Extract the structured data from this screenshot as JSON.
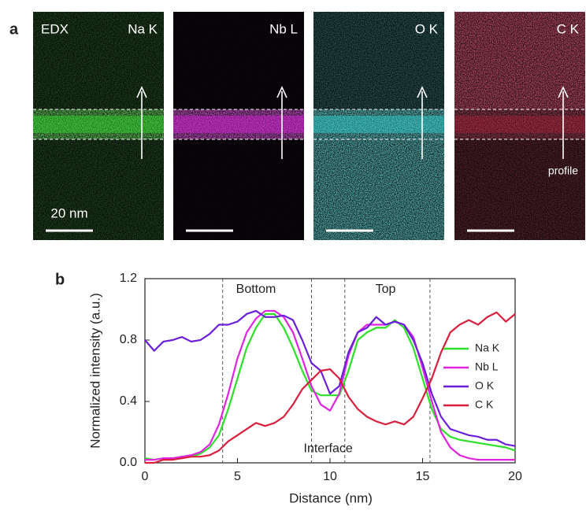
{
  "panel_a": {
    "label": "a",
    "edx": "EDX",
    "scale_bar": "20 nm",
    "profile": "profile",
    "maps": [
      {
        "label": "Na K",
        "color": "#2fe02a"
      },
      {
        "label": "Nb L",
        "color": "#e020e0"
      },
      {
        "label": "O K",
        "color": "#2ed8d8"
      },
      {
        "label": "C K",
        "color": "#e8203c"
      }
    ]
  },
  "chart_data": {
    "type": "line",
    "panel_label": "b",
    "x_label": "Distance (nm)",
    "y_label": "Normalized intensity (a.u.)",
    "x": [
      0,
      0.5,
      1,
      1.5,
      2,
      2.5,
      3,
      3.5,
      4,
      4.5,
      5,
      5.5,
      6,
      6.5,
      7,
      7.5,
      8,
      8.5,
      9,
      9.5,
      10,
      10.5,
      11,
      11.5,
      12,
      12.5,
      13,
      13.5,
      14,
      14.5,
      15,
      15.5,
      16,
      16.5,
      17,
      17.5,
      18,
      18.5,
      19,
      19.5,
      20
    ],
    "series": [
      {
        "name": "Na K",
        "color": "#2ee02a",
        "values": [
          0.03,
          0.02,
          0.03,
          0.03,
          0.04,
          0.04,
          0.06,
          0.1,
          0.18,
          0.35,
          0.55,
          0.75,
          0.88,
          0.97,
          0.97,
          0.88,
          0.75,
          0.6,
          0.47,
          0.44,
          0.44,
          0.44,
          0.6,
          0.8,
          0.85,
          0.88,
          0.88,
          0.93,
          0.88,
          0.75,
          0.55,
          0.35,
          0.22,
          0.17,
          0.15,
          0.14,
          0.13,
          0.12,
          0.11,
          0.1,
          0.08
        ]
      },
      {
        "name": "Nb L",
        "color": "#e024e0",
        "values": [
          0.02,
          0.02,
          0.03,
          0.03,
          0.04,
          0.05,
          0.07,
          0.12,
          0.25,
          0.45,
          0.68,
          0.85,
          0.94,
          0.99,
          0.99,
          0.95,
          0.85,
          0.68,
          0.5,
          0.38,
          0.34,
          0.45,
          0.7,
          0.85,
          0.9,
          0.9,
          0.9,
          0.92,
          0.9,
          0.82,
          0.62,
          0.4,
          0.2,
          0.1,
          0.05,
          0.03,
          0.02,
          0.02,
          0.02,
          0.02,
          0.02
        ]
      },
      {
        "name": "O K",
        "color": "#6a1fd8",
        "values": [
          0.8,
          0.73,
          0.79,
          0.8,
          0.82,
          0.79,
          0.8,
          0.84,
          0.9,
          0.9,
          0.92,
          0.97,
          0.99,
          0.95,
          0.95,
          0.96,
          0.93,
          0.8,
          0.65,
          0.6,
          0.45,
          0.5,
          0.72,
          0.85,
          0.88,
          0.95,
          0.9,
          0.92,
          0.9,
          0.8,
          0.65,
          0.45,
          0.3,
          0.22,
          0.2,
          0.18,
          0.17,
          0.15,
          0.15,
          0.12,
          0.11
        ]
      },
      {
        "name": "C K",
        "color": "#d8203c",
        "values": [
          0.0,
          0.0,
          0.02,
          0.02,
          0.03,
          0.04,
          0.04,
          0.05,
          0.08,
          0.14,
          0.18,
          0.22,
          0.26,
          0.24,
          0.26,
          0.3,
          0.38,
          0.48,
          0.54,
          0.6,
          0.61,
          0.55,
          0.43,
          0.35,
          0.3,
          0.27,
          0.25,
          0.27,
          0.25,
          0.3,
          0.42,
          0.55,
          0.72,
          0.85,
          0.9,
          0.93,
          0.9,
          0.95,
          0.98,
          0.92,
          0.97
        ]
      }
    ],
    "xlim": [
      0,
      20
    ],
    "xticks": [
      0,
      5,
      10,
      15,
      20
    ],
    "ylim": [
      0,
      1.2
    ],
    "yticks": [
      {
        "value": 0,
        "label": "0.0"
      },
      0.4,
      0.8,
      1.2
    ],
    "vlines": [
      4.2,
      9.0,
      10.8,
      15.4
    ],
    "annotations": [
      {
        "text": "Bottom",
        "x": 6.0,
        "y": 1.13
      },
      {
        "text": "Top",
        "x": 13.0,
        "y": 1.13
      },
      {
        "text": "Interface",
        "x": 9.9,
        "y": 0.09
      }
    ],
    "legend": "right"
  }
}
